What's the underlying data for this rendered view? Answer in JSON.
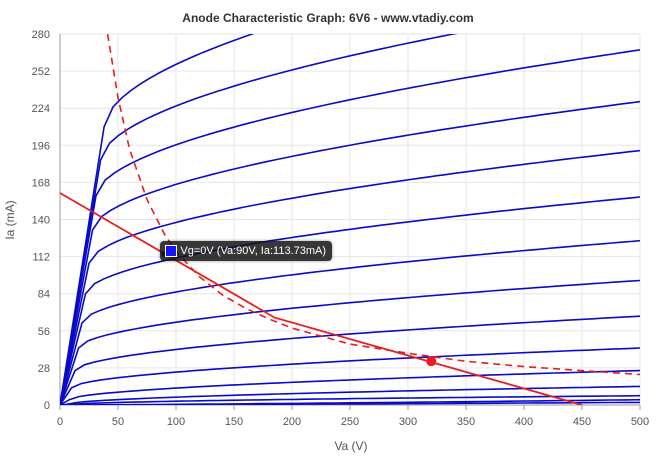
{
  "chart_data": {
    "type": "line",
    "title": "Anode Characteristic Graph: 6V6 - www.vtadiy.com",
    "xlabel": "Va (V)",
    "ylabel": "Ia (mA)",
    "xlim": [
      0,
      500
    ],
    "ylim": [
      0,
      280
    ],
    "xticks": [
      0,
      50,
      100,
      150,
      200,
      250,
      300,
      350,
      400,
      450,
      500
    ],
    "yticks": [
      0,
      28,
      56,
      84,
      112,
      140,
      168,
      196,
      224,
      252,
      280
    ],
    "grid": true,
    "colors": {
      "curves": "#0a0ac8",
      "load_line": "#e61e1e",
      "dissipation": "#e61e1e",
      "tooltip_swatch": "#1414ff"
    },
    "anode_curves": [
      {
        "knee_current": 210,
        "knee_voltage": 38,
        "end_current": 352
      },
      {
        "knee_current": 185,
        "knee_voltage": 35,
        "end_current": 305
      },
      {
        "knee_current": 158,
        "knee_voltage": 31,
        "end_current": 268
      },
      {
        "knee_current": 132,
        "knee_voltage": 28,
        "end_current": 229
      },
      {
        "knee_current": 107,
        "knee_voltage": 25,
        "end_current": 192
      },
      {
        "knee_current": 84,
        "knee_voltage": 22,
        "end_current": 157
      },
      {
        "knee_current": 62,
        "knee_voltage": 19,
        "end_current": 124
      },
      {
        "knee_current": 43,
        "knee_voltage": 16,
        "end_current": 94
      },
      {
        "knee_current": 26,
        "knee_voltage": 13,
        "end_current": 67
      },
      {
        "knee_current": 13,
        "knee_voltage": 10,
        "end_current": 43
      },
      {
        "knee_current": 4,
        "knee_voltage": 8,
        "end_current": 26
      },
      {
        "knee_current": 0.5,
        "knee_voltage": 6,
        "end_current": 14
      },
      {
        "knee_current": 0.05,
        "knee_voltage": 5,
        "end_current": 7
      },
      {
        "knee_current": 0,
        "knee_voltage": 5,
        "end_current": 4
      },
      {
        "knee_current": 0,
        "knee_voltage": 5,
        "end_current": 2
      }
    ],
    "dissipation_curve": [
      [
        41,
        280
      ],
      [
        50,
        232
      ],
      [
        60,
        193
      ],
      [
        75,
        155
      ],
      [
        90,
        129
      ],
      [
        100,
        116
      ],
      [
        120,
        97
      ],
      [
        140,
        83
      ],
      [
        160,
        73
      ],
      [
        180,
        65
      ],
      [
        200,
        58
      ],
      [
        250,
        46
      ],
      [
        300,
        39
      ],
      [
        350,
        33
      ],
      [
        400,
        29
      ],
      [
        450,
        26
      ],
      [
        500,
        23
      ]
    ],
    "load_line": [
      [
        0,
        160
      ],
      [
        185,
        66
      ],
      [
        450,
        0
      ]
    ],
    "operating_point": {
      "va": 320,
      "ia": 33
    },
    "tooltip": {
      "text": "Vg=0V (Va:90V, Ia:113.73mA)",
      "va": 90,
      "ia": 113.73
    }
  }
}
